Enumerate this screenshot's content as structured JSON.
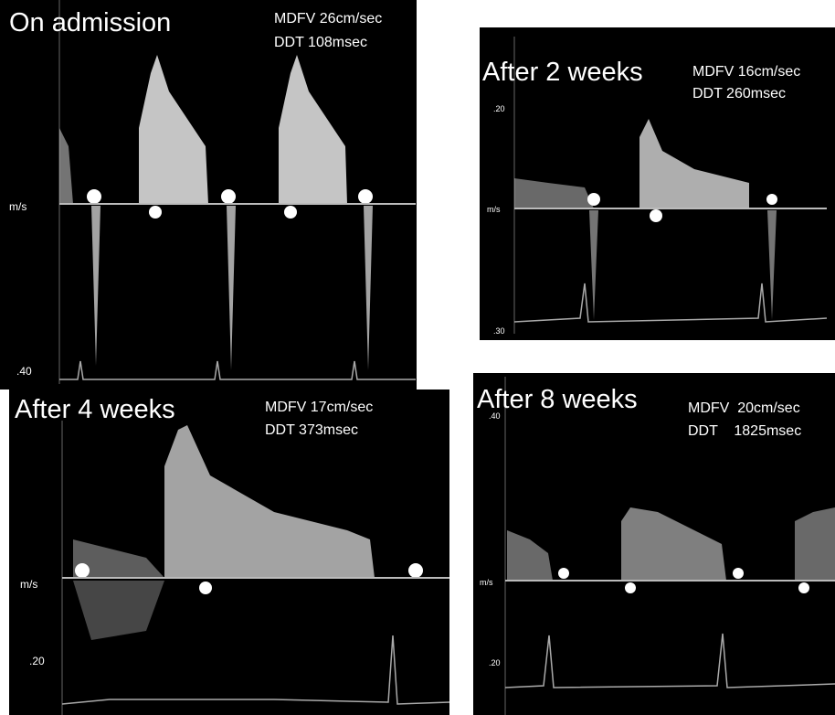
{
  "panels": [
    {
      "title": "On admission",
      "mdfv": "MDFV 26cm/sec",
      "ddt": "DDT 108msec",
      "labels": [
        "m/s",
        ".40"
      ]
    },
    {
      "title": "After 2 weeks",
      "mdfv": "MDFV 16cm/sec",
      "ddt": "DDT 260msec",
      "labels": [
        ".20",
        "m/s",
        ".30"
      ]
    },
    {
      "title": "After 4 weeks",
      "mdfv": "MDFV 17cm/sec",
      "ddt": "DDT 373msec",
      "labels": [
        "m/s",
        ".20"
      ]
    },
    {
      "title": "After 8 weeks",
      "mdfv": "MDFV  20cm/sec",
      "ddt": "DDT    1825msec",
      "labels": [
        ".40",
        "m/s",
        ".20"
      ]
    }
  ]
}
